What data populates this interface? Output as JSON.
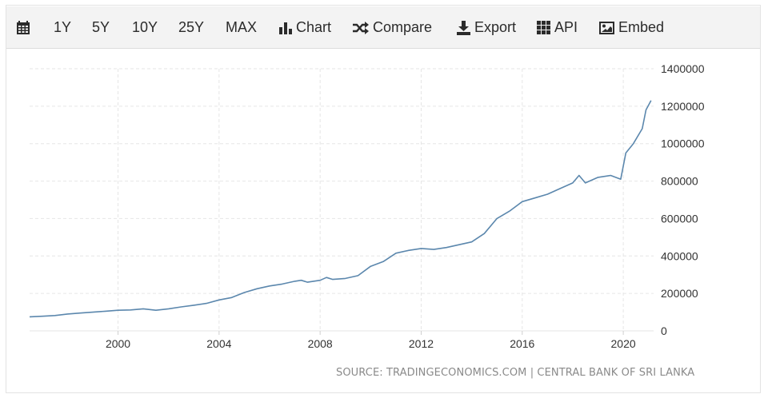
{
  "toolbar": {
    "items": [
      {
        "label": "",
        "icon": "calendar-icon"
      },
      {
        "label": "1Y"
      },
      {
        "label": "5Y"
      },
      {
        "label": "10Y"
      },
      {
        "label": "25Y"
      },
      {
        "label": "MAX"
      },
      {
        "label": "Chart",
        "icon": "bar-chart-icon"
      },
      {
        "label": "Compare",
        "icon": "shuffle-icon"
      },
      {
        "label": "Export",
        "icon": "download-icon"
      },
      {
        "label": "API",
        "icon": "grid-icon"
      },
      {
        "label": "Embed",
        "icon": "image-icon"
      }
    ]
  },
  "chart_data": {
    "type": "line",
    "title": "",
    "xlabel": "",
    "ylabel": "",
    "xlim": [
      1996.5,
      2021.2
    ],
    "ylim": [
      0,
      1400000
    ],
    "x_ticks": [
      2000,
      2004,
      2008,
      2012,
      2016,
      2020
    ],
    "y_ticks": [
      0,
      200000,
      400000,
      600000,
      800000,
      1000000,
      1200000,
      1400000
    ],
    "y_axis_side": "right",
    "grid": true,
    "line_color": "#5b87ad",
    "series": [
      {
        "name": "",
        "x": [
          1996.5,
          1997,
          1997.5,
          1998,
          1998.5,
          1999,
          1999.5,
          2000,
          2000.5,
          2001,
          2001.5,
          2002,
          2002.5,
          2003,
          2003.5,
          2004,
          2004.5,
          2005,
          2005.5,
          2006,
          2006.5,
          2007,
          2007.25,
          2007.5,
          2008,
          2008.25,
          2008.5,
          2009,
          2009.5,
          2010,
          2010.5,
          2011,
          2011.5,
          2012,
          2012.5,
          2013,
          2013.5,
          2014,
          2014.5,
          2015,
          2015.5,
          2016,
          2016.5,
          2017,
          2017.5,
          2018,
          2018.25,
          2018.5,
          2019,
          2019.5,
          2019.9,
          2020.1,
          2020.4,
          2020.75,
          2020.9,
          2021.1
        ],
        "values": [
          75000,
          78000,
          82000,
          90000,
          95000,
          100000,
          105000,
          110000,
          112000,
          118000,
          110000,
          118000,
          128000,
          137000,
          147000,
          165000,
          178000,
          205000,
          225000,
          240000,
          250000,
          265000,
          270000,
          260000,
          270000,
          285000,
          275000,
          280000,
          295000,
          345000,
          370000,
          415000,
          430000,
          440000,
          435000,
          445000,
          460000,
          475000,
          520000,
          600000,
          640000,
          690000,
          710000,
          730000,
          760000,
          790000,
          830000,
          790000,
          820000,
          830000,
          810000,
          950000,
          1000000,
          1080000,
          1180000,
          1230000
        ]
      }
    ],
    "source": "SOURCE: TRADINGECONOMICS.COM | CENTRAL BANK OF SRI LANKA"
  }
}
